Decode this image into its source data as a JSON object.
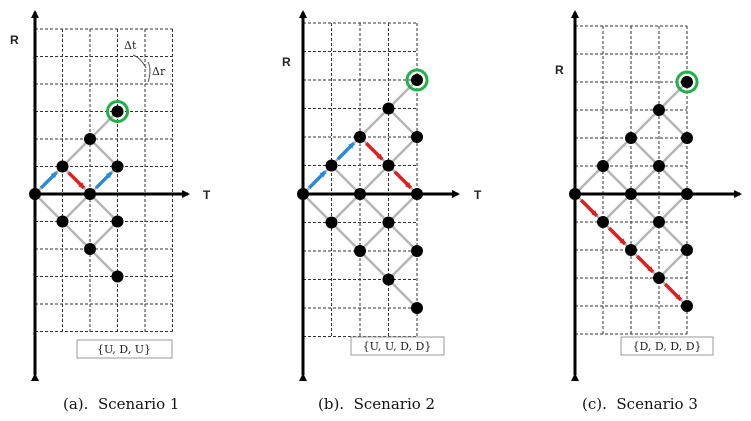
{
  "axes": {
    "vertical_label": "R",
    "horizontal_label": "T"
  },
  "step_labels": {
    "time_step": "Δt",
    "rate_step": "Δr"
  },
  "colors": {
    "up_arrow": "#2a8ad8",
    "down_arrow": "#e02020",
    "target_ring": "#22b04a",
    "node": "#000000",
    "lattice": "#b5b5b5"
  },
  "panels": [
    {
      "id": "a",
      "caption": "(a).  Scenario 1",
      "sequence_label": "{U, D, U}",
      "moves": [
        "U",
        "D",
        "U"
      ]
    },
    {
      "id": "b",
      "caption": "(b).  Scenario 2",
      "sequence_label": "{U, U, D, D}",
      "moves": [
        "U",
        "U",
        "D",
        "D"
      ]
    },
    {
      "id": "c",
      "caption": "(c).  Scenario 3",
      "sequence_label": "{D, D, D, D}",
      "moves": [
        "D",
        "D",
        "D",
        "D"
      ]
    }
  ]
}
